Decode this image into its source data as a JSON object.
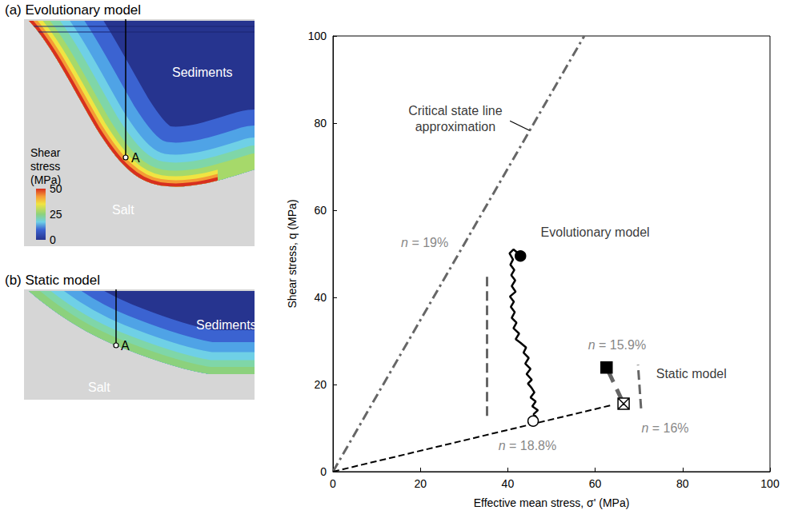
{
  "chart_data": {
    "type": "line",
    "xlabel": "Effective mean stress, σ' (MPa)",
    "ylabel": "Shear stress, q (MPa)",
    "xlim": [
      0,
      100
    ],
    "ylim": [
      0,
      100
    ],
    "xticks": [
      0,
      20,
      40,
      60,
      80,
      100
    ],
    "yticks": [
      0,
      20,
      40,
      60,
      80,
      100
    ],
    "grid": false,
    "series": [
      {
        "type": "line",
        "color": "#666666",
        "line_style": "dashdot",
        "x": [
          0,
          57.5
        ],
        "values": [
          0,
          100
        ]
      },
      {
        "type": "line",
        "color": "#000000",
        "line_style": "solid",
        "x": [
          45.8,
          46.6,
          45.9,
          46.9,
          45.6,
          46.4,
          45.2,
          46.1,
          45.4,
          44.6,
          45.5,
          44.3,
          45.2,
          44.0,
          44.8,
          43.6,
          44.2,
          42.9,
          41.8,
          42.6,
          41.3,
          42.0,
          40.9,
          41.6,
          40.7,
          41.4,
          40.5,
          41.8,
          40.9,
          41.7,
          40.8,
          41.5,
          40.6,
          41.2,
          40.4,
          41.3,
          42.3,
          42.9
        ],
        "values": [
          11.6,
          12.4,
          13.2,
          14.1,
          15.0,
          16.1,
          17.0,
          18.2,
          19.3,
          20.2,
          21.1,
          22.4,
          23.6,
          24.8,
          26.1,
          27.3,
          28.5,
          29.6,
          30.4,
          31.7,
          32.9,
          34.2,
          35.3,
          36.6,
          37.8,
          39.0,
          40.2,
          41.3,
          42.6,
          43.9,
          45.1,
          46.3,
          47.5,
          48.7,
          50.1,
          51.0,
          50.2,
          49.5
        ]
      },
      {
        "type": "line",
        "color": "#666666",
        "line_style": "dashed",
        "x": [
          66.5,
          62.6
        ],
        "values": [
          15.6,
          23.9
        ]
      },
      {
        "type": "scatter",
        "marker": "open_circle",
        "color": "#000000",
        "x": [
          45.8
        ],
        "values": [
          11.6
        ]
      },
      {
        "type": "scatter",
        "marker": "circle",
        "color": "#000000",
        "x": [
          42.9
        ],
        "values": [
          49.5
        ]
      },
      {
        "type": "scatter",
        "marker": "open_square_x",
        "color": "#000000",
        "x": [
          66.5
        ],
        "values": [
          15.6
        ]
      },
      {
        "type": "scatter",
        "marker": "square",
        "color": "#000000",
        "x": [
          62.6
        ],
        "values": [
          23.9
        ]
      }
    ],
    "arrows": [
      {
        "from": [
          0,
          0
        ],
        "to": [
          63.5,
          15.2
        ],
        "color": "#000000",
        "line_style": "dashed"
      },
      {
        "from": [
          35.2,
          12.8
        ],
        "to": [
          35.2,
          44.8
        ],
        "color": "#666666",
        "line_style": "dashed"
      },
      {
        "from": [
          70.5,
          14.5
        ],
        "to": [
          69.8,
          24.5
        ],
        "color": "#666666",
        "line_style": "dashed"
      },
      {
        "from": [
          40.5,
          80.5
        ],
        "to": [
          45.0,
          78.3
        ],
        "color": "#000000",
        "line_style": "solid"
      }
    ],
    "annotations": [
      {
        "text": "Critical state line approximation",
        "x": 28,
        "y": 81,
        "color": "#000000"
      },
      {
        "text": "n = 19%",
        "x": 21,
        "y": 52.5,
        "color": "#666666"
      },
      {
        "text": "Evolutionary model",
        "x": 60,
        "y": 55,
        "color": "#000000"
      },
      {
        "text": "n = 18.8%",
        "x": 44.5,
        "y": 6,
        "color": "#666666"
      },
      {
        "text": "n = 15.9%",
        "x": 65,
        "y": 29,
        "color": "#666666"
      },
      {
        "text": "Static model",
        "x": 82,
        "y": 22.5,
        "color": "#000000"
      },
      {
        "text": "n = 16%",
        "x": 76,
        "y": 10,
        "color": "#666666"
      }
    ]
  },
  "panels": [
    {
      "title": "(a) Evolutionary model",
      "sediments": "Sediments",
      "salt": "Salt",
      "point": "A",
      "colorbar": {
        "title": "Shear stress (MPa)",
        "range": [
          0,
          50
        ],
        "ticks": [
          0,
          25,
          50
        ]
      }
    },
    {
      "title": "(b) Static model",
      "sediments": "Sediments",
      "salt": "Salt",
      "point": "A"
    }
  ]
}
